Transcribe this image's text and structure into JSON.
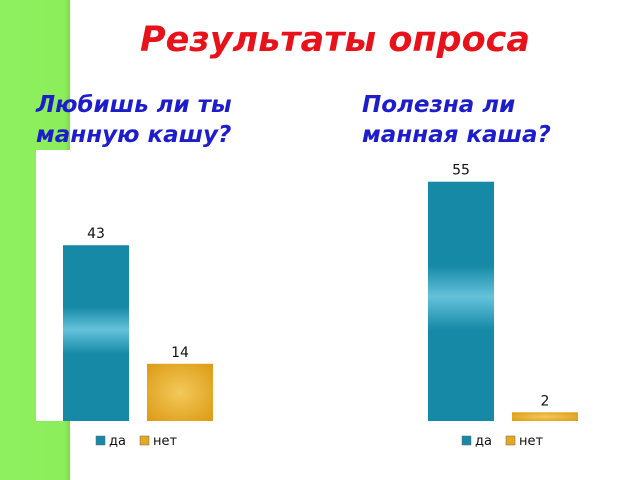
{
  "slide": {
    "title": "Результаты опроса"
  },
  "colors": {
    "side_bar": "#8cee5b",
    "title": "#e8121b",
    "question": "#1d1dcc",
    "series_da": "#1589a6",
    "series_net": "#e5a823"
  },
  "chart_data": [
    {
      "type": "bar",
      "title": "Любишь ли ты\nманную кашу?",
      "categories": [
        "да",
        "нет"
      ],
      "values": [
        43,
        14
      ],
      "ylim": [
        0,
        57
      ],
      "grid": false,
      "legend": "bottom",
      "legend_entries": [
        "да",
        "нет"
      ],
      "data_labels": [
        "43",
        "14"
      ]
    },
    {
      "type": "bar",
      "title": "Полезна ли\nманная каша?",
      "categories": [
        "да",
        "нет"
      ],
      "values": [
        55,
        2
      ],
      "ylim": [
        0,
        57
      ],
      "grid": false,
      "legend": "bottom",
      "legend_entries": [
        "да",
        "нет"
      ],
      "data_labels": [
        "55",
        "2"
      ]
    }
  ]
}
